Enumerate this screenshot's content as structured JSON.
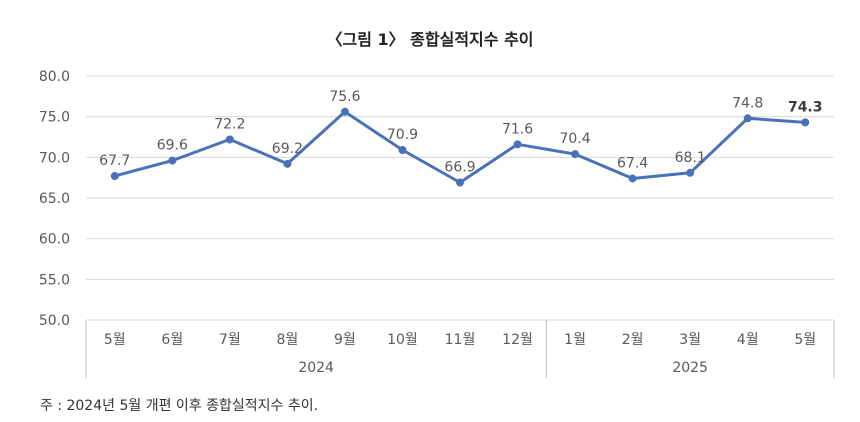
{
  "chart_data": {
    "type": "line",
    "title": "〈그림 1〉 종합실적지수 추이",
    "categories": [
      "5월",
      "6월",
      "7월",
      "8월",
      "9월",
      "10월",
      "11월",
      "12월",
      "1월",
      "2월",
      "3월",
      "4월",
      "5월"
    ],
    "year_groups": [
      {
        "label": "2024",
        "span": 8
      },
      {
        "label": "2025",
        "span": 5
      }
    ],
    "series": [
      {
        "name": "종합실적지수",
        "values": [
          67.7,
          69.6,
          72.2,
          69.2,
          75.6,
          70.9,
          66.9,
          71.6,
          70.4,
          67.4,
          68.1,
          74.8,
          74.3
        ],
        "data_labels": [
          "67.7",
          "69.6",
          "72.2",
          "69.2",
          "75.6",
          "70.9",
          "66.9",
          "71.6",
          "70.4",
          "67.4",
          "68.1",
          "74.8",
          "74.3"
        ]
      }
    ],
    "ylim": [
      50,
      80
    ],
    "yticks": [
      "50.0",
      "55.0",
      "60.0",
      "65.0",
      "70.0",
      "75.0",
      "80.0"
    ],
    "grid": true,
    "line_color": "#4a72b8"
  },
  "footnote": "주 : 2024년 5월 개편 이후 종합실적지수 추이."
}
